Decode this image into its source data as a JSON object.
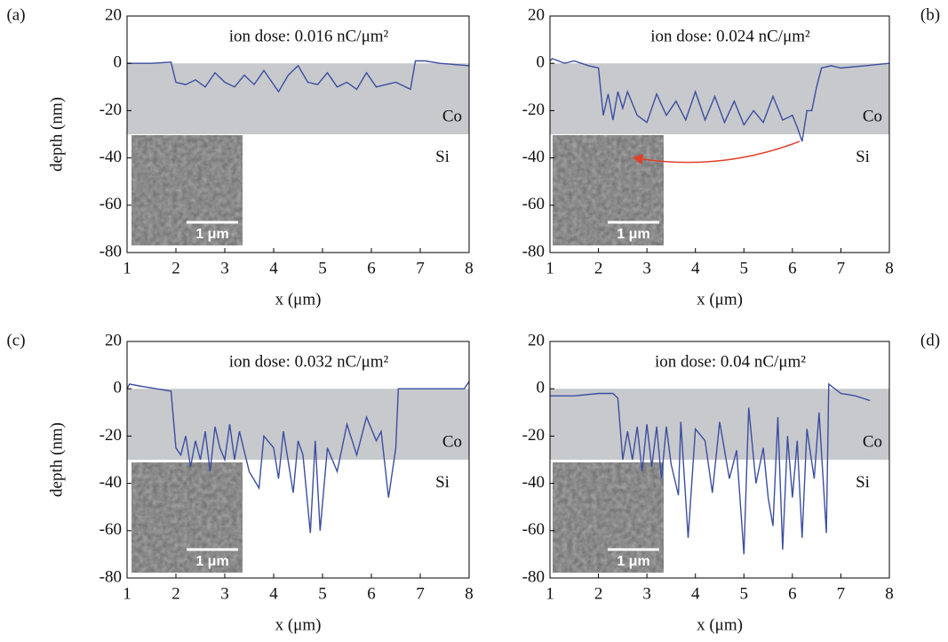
{
  "chart_data": [
    {
      "type": "line",
      "panel_label": "(a)",
      "title": "ion dose: 0.016 nC/μm²",
      "ylabel": "depth (nm)",
      "xlabel": "x (μm)",
      "annotations": [
        "Co",
        "Si"
      ],
      "scale_bar_label": "1 μm",
      "color": "#3b4fa0",
      "band_color": "#c8c9cd",
      "shaded_range": [
        -30,
        0
      ],
      "xlim": [
        1,
        8
      ],
      "ylim": [
        -80,
        20
      ],
      "xticks": [
        1,
        2,
        3,
        4,
        5,
        6,
        7,
        8
      ],
      "yticks": [
        -80,
        -60,
        -40,
        -20,
        0,
        20
      ],
      "x": [
        1,
        1.5,
        1.9,
        2.0,
        2.2,
        2.4,
        2.6,
        2.8,
        3.0,
        3.2,
        3.4,
        3.6,
        3.8,
        4.0,
        4.1,
        4.3,
        4.5,
        4.7,
        4.9,
        5.1,
        5.3,
        5.5,
        5.7,
        5.9,
        6.1,
        6.3,
        6.5,
        6.7,
        6.8,
        6.9,
        7.1,
        7.4,
        8
      ],
      "values": [
        0,
        0,
        0.5,
        -8,
        -9,
        -7,
        -10,
        -4,
        -8,
        -10,
        -5,
        -9,
        -3,
        -9,
        -12,
        -5,
        -1,
        -8,
        -9,
        -4,
        -10,
        -8,
        -11,
        -4,
        -10,
        -9,
        -8,
        -10,
        -11,
        1,
        1,
        0,
        -1
      ]
    },
    {
      "type": "line",
      "panel_label": "(b)",
      "title": "ion dose: 0.024 nC/μm²",
      "xlabel": "x (μm)",
      "annotations": [
        "Co",
        "Si"
      ],
      "scale_bar_label": "1 μm",
      "color": "#3b4fa0",
      "band_color": "#c8c9cd",
      "shaded_range": [
        -30,
        0
      ],
      "xlim": [
        1,
        8
      ],
      "ylim": [
        -80,
        20
      ],
      "xticks": [
        1,
        2,
        3,
        4,
        5,
        6,
        7,
        8
      ],
      "yticks": [
        -80,
        -60,
        -40,
        -20,
        0,
        20
      ],
      "x": [
        1,
        1.05,
        1.3,
        1.5,
        1.8,
        2.0,
        2.1,
        2.2,
        2.3,
        2.4,
        2.5,
        2.6,
        2.8,
        3.0,
        3.2,
        3.4,
        3.6,
        3.8,
        4.0,
        4.2,
        4.4,
        4.6,
        4.8,
        5.0,
        5.2,
        5.4,
        5.6,
        5.8,
        6.0,
        6.1,
        6.2,
        6.3,
        6.4,
        6.5,
        6.6,
        6.8,
        7.0,
        7.5,
        8
      ],
      "values": [
        1,
        2,
        0,
        1,
        -1,
        -2,
        -22,
        -13,
        -24,
        -12,
        -19,
        -12,
        -22,
        -25,
        -13,
        -22,
        -16,
        -24,
        -12,
        -24,
        -14,
        -25,
        -16,
        -26,
        -20,
        -25,
        -14,
        -24,
        -22,
        -27,
        -33,
        -20,
        -20,
        -10,
        -2,
        -1,
        -2,
        -1,
        0
      ]
    },
    {
      "type": "line",
      "panel_label": "(c)",
      "title": "ion dose: 0.032 nC/μm²",
      "ylabel": "depth (nm)",
      "xlabel": "x (μm)",
      "annotations": [
        "Co",
        "Si"
      ],
      "scale_bar_label": "1 μm",
      "color": "#3b4fa0",
      "band_color": "#c8c9cd",
      "shaded_range": [
        -30,
        0
      ],
      "xlim": [
        1,
        8
      ],
      "ylim": [
        -80,
        20
      ],
      "xticks": [
        1,
        2,
        3,
        4,
        5,
        6,
        7,
        8
      ],
      "yticks": [
        -80,
        -60,
        -40,
        -20,
        0,
        20
      ],
      "x": [
        1,
        1.05,
        1.3,
        1.6,
        1.9,
        2.0,
        2.1,
        2.2,
        2.3,
        2.4,
        2.5,
        2.6,
        2.7,
        2.8,
        2.9,
        3.0,
        3.1,
        3.2,
        3.3,
        3.5,
        3.7,
        3.8,
        4.0,
        4.1,
        4.2,
        4.4,
        4.5,
        4.6,
        4.75,
        4.85,
        4.95,
        5.1,
        5.3,
        5.5,
        5.7,
        5.9,
        6.1,
        6.2,
        6.35,
        6.5,
        6.55,
        7.0,
        7.5,
        7.9,
        8
      ],
      "values": [
        0,
        2,
        1,
        0,
        -1,
        -25,
        -28,
        -20,
        -33,
        -22,
        -30,
        -18,
        -35,
        -16,
        -25,
        -30,
        -15,
        -30,
        -18,
        -35,
        -42,
        -20,
        -25,
        -38,
        -18,
        -44,
        -22,
        -28,
        -61,
        -22,
        -60,
        -25,
        -35,
        -15,
        -28,
        -12,
        -22,
        -18,
        -46,
        -25,
        0,
        0,
        0,
        0,
        3
      ]
    },
    {
      "type": "line",
      "panel_label": "(d)",
      "title": "ion dose: 0.04 nC/μm²",
      "xlabel": "x (μm)",
      "annotations": [
        "Co",
        "Si"
      ],
      "scale_bar_label": "1 μm",
      "color": "#3b4fa0",
      "band_color": "#c8c9cd",
      "shaded_range": [
        -30,
        0
      ],
      "xlim": [
        1,
        8
      ],
      "ylim": [
        -80,
        20
      ],
      "xticks": [
        1,
        2,
        3,
        4,
        5,
        6,
        7,
        8
      ],
      "yticks": [
        -80,
        -60,
        -40,
        -20,
        0,
        20
      ],
      "x": [
        1,
        1.5,
        2.0,
        2.3,
        2.4,
        2.5,
        2.6,
        2.7,
        2.8,
        2.9,
        3.0,
        3.1,
        3.2,
        3.3,
        3.4,
        3.5,
        3.65,
        3.7,
        3.85,
        4.0,
        4.2,
        4.35,
        4.5,
        4.7,
        4.85,
        5.0,
        5.1,
        5.25,
        5.4,
        5.5,
        5.6,
        5.7,
        5.8,
        5.9,
        6.0,
        6.1,
        6.2,
        6.3,
        6.45,
        6.55,
        6.7,
        6.75,
        7.0,
        7.3,
        7.6
      ],
      "values": [
        -3,
        -3,
        -2,
        -2,
        -4,
        -30,
        -18,
        -30,
        -16,
        -35,
        -15,
        -33,
        -16,
        -38,
        -16,
        -32,
        -45,
        -14,
        -63,
        -17,
        -22,
        -44,
        -14,
        -38,
        -26,
        -70,
        -8,
        -40,
        -25,
        -46,
        -58,
        -12,
        -68,
        -20,
        -46,
        -22,
        -63,
        -17,
        -38,
        -10,
        -61,
        2,
        -2,
        -3,
        -5
      ]
    }
  ]
}
